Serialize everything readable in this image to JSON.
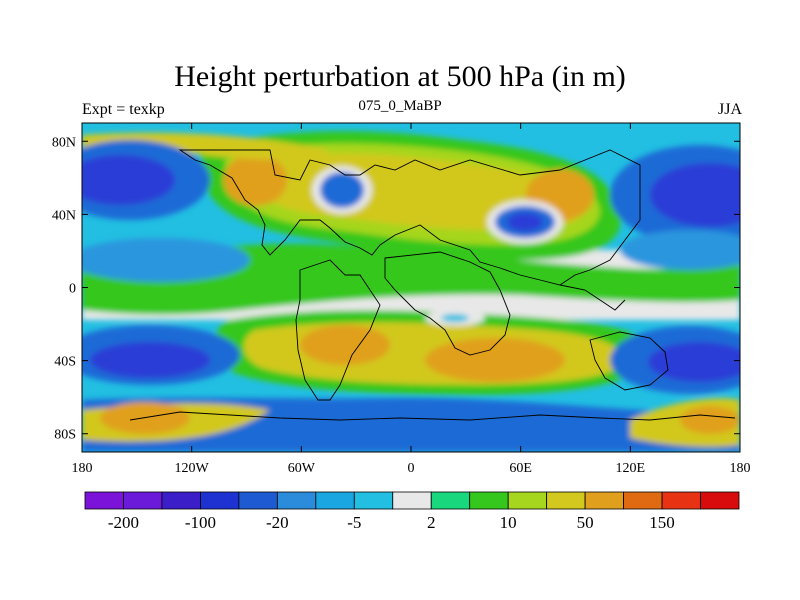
{
  "title": "Height perturbation at 500 hPa (in m)",
  "left_string": "Expt = texkp",
  "center_string": "075_0_MaBP",
  "right_string": "JJA",
  "lat_labels": [
    "80N",
    "40N",
    "0",
    "40S",
    "80S"
  ],
  "lat_values": [
    80,
    40,
    0,
    -40,
    -80
  ],
  "lon_labels": [
    "180",
    "120W",
    "60W",
    "0",
    "60E",
    "120E",
    "180"
  ],
  "lon_values": [
    -180,
    -120,
    -60,
    0,
    60,
    120,
    180
  ],
  "colorbar": {
    "colors": [
      "#7b14d8",
      "#6a1ad8",
      "#3c1ec8",
      "#1e32d2",
      "#1e5ad2",
      "#2b8cdc",
      "#1aa6e0",
      "#22bfe2",
      "#e8e8e8",
      "#18d77c",
      "#36c71e",
      "#a6d61e",
      "#d2c81e",
      "#e0a01e",
      "#e06a12",
      "#e83214",
      "#d80c0c"
    ],
    "label_positions": [
      1,
      3,
      5,
      7,
      9,
      11,
      13,
      15
    ],
    "labels": [
      "-200",
      "-100",
      "-20",
      "-5",
      "2",
      "10",
      "50",
      "150"
    ]
  },
  "map_colors": {
    "blue_dark": "#2a3ed6",
    "blue_mid": "#1e6ad6",
    "blue_light": "#2a96de",
    "cyan": "#22bfe2",
    "white": "#e8e8e8",
    "green_light": "#18d77c",
    "green": "#36c71e",
    "yellow_green": "#a6d61e",
    "yellow": "#d2c81e",
    "orange": "#e0a01e",
    "deep_orange": "#e06a12"
  }
}
